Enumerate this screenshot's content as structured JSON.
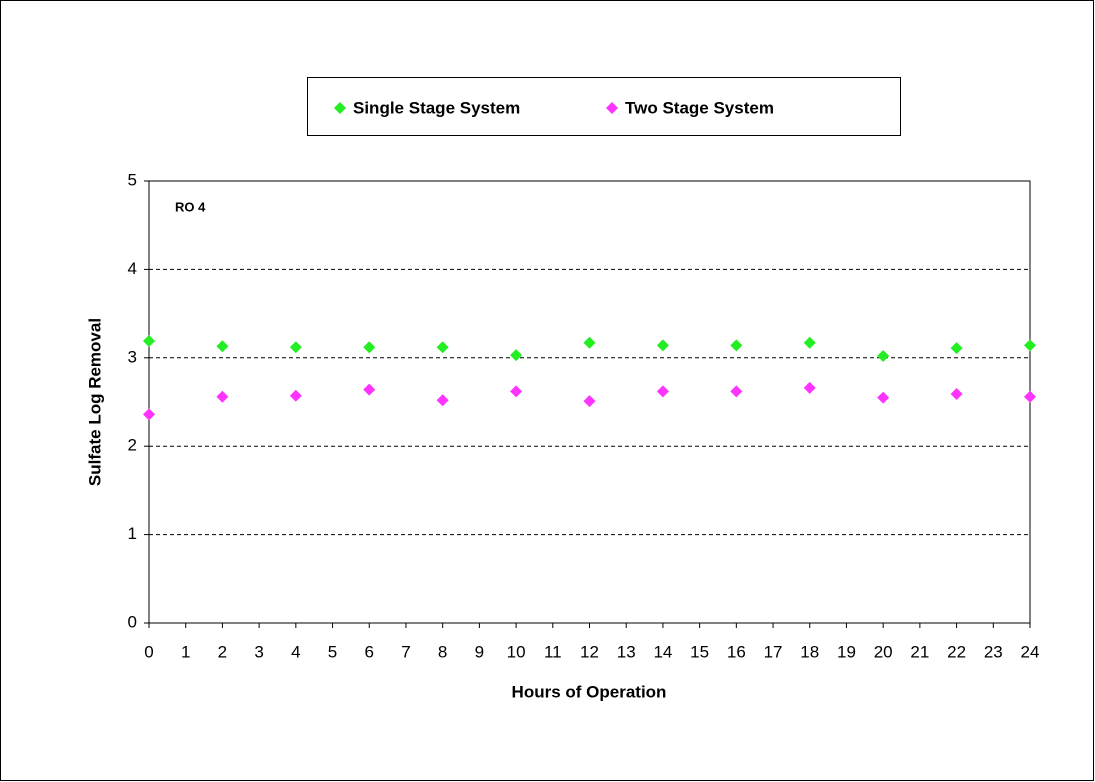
{
  "chart_data": {
    "type": "scatter",
    "xlabel": "Hours of Operation",
    "ylabel": "Sulfate Log Removal",
    "annotation": "RO 4",
    "xlim": [
      0,
      24
    ],
    "xticks": [
      0,
      1,
      2,
      3,
      4,
      5,
      6,
      7,
      8,
      9,
      10,
      11,
      12,
      13,
      14,
      15,
      16,
      17,
      18,
      19,
      20,
      21,
      22,
      23,
      24
    ],
    "ylim": [
      0,
      5
    ],
    "yticks": [
      0,
      1,
      2,
      3,
      4,
      5
    ],
    "grid": true,
    "legend": "top",
    "series": [
      {
        "name": "Single Stage System",
        "color": "#22ee22",
        "x": [
          0,
          2,
          4,
          6,
          8,
          10,
          12,
          14,
          16,
          18,
          20,
          22,
          24
        ],
        "values": [
          3.19,
          3.13,
          3.12,
          3.12,
          3.12,
          3.03,
          3.17,
          3.14,
          3.14,
          3.17,
          3.02,
          3.11,
          3.14
        ]
      },
      {
        "name": "Two Stage System",
        "color": "#ff33ff",
        "x": [
          0,
          2,
          4,
          6,
          8,
          10,
          12,
          14,
          16,
          18,
          20,
          22,
          24
        ],
        "values": [
          2.36,
          2.56,
          2.57,
          2.64,
          2.52,
          2.62,
          2.51,
          2.62,
          2.62,
          2.66,
          2.55,
          2.59,
          2.56
        ]
      }
    ]
  }
}
